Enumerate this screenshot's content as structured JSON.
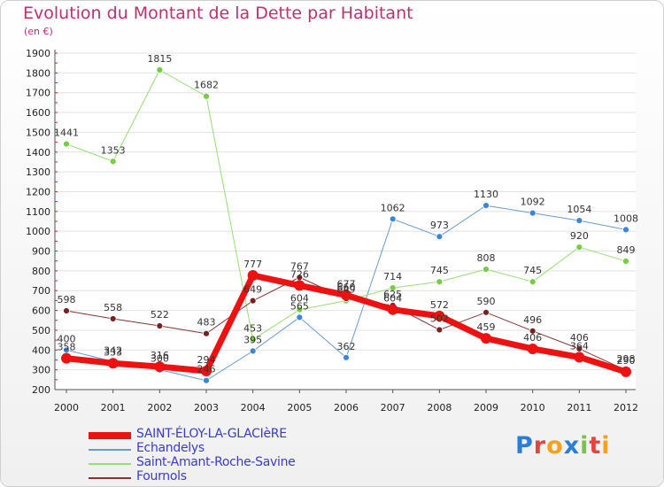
{
  "title": "Evolution du Montant de la Dette par Habitant",
  "subtitle": "(en €)",
  "logo": {
    "letters": [
      "P",
      "r",
      "o",
      "x",
      "i",
      "t",
      "i"
    ],
    "colors": [
      "#2a7ed6",
      "#e0463b",
      "#f3a21a",
      "#2a7ed6",
      "#7cc242",
      "#e0463b",
      "#f3a21a"
    ]
  },
  "chart_data": {
    "type": "line",
    "x": [
      "2000",
      "2001",
      "2002",
      "2003",
      "2004",
      "2005",
      "2006",
      "2007",
      "2008",
      "2009",
      "2010",
      "2011",
      "2012"
    ],
    "yticks": [
      200,
      300,
      400,
      500,
      600,
      700,
      800,
      900,
      1000,
      1100,
      1200,
      1300,
      1400,
      1500,
      1600,
      1700,
      1800,
      1900
    ],
    "ylim": [
      200,
      1900
    ],
    "grid": "horizontal",
    "legend_position": "bottom-left",
    "series": [
      {
        "name": "SAINT-ÉLOY-LA-GLACIèRE",
        "color": "#ee1111",
        "width": 7,
        "marker": 6,
        "values": [
          358,
          333,
          316,
          294,
          777,
          726,
          677,
          604,
          572,
          459,
          406,
          364,
          290
        ],
        "labels": [
          "358",
          "333",
          "316",
          "294",
          "777",
          "726",
          "677",
          "604",
          "572",
          "459",
          "406",
          "364",
          "290"
        ]
      },
      {
        "name": "Echandelys",
        "color": "#6a9ad0",
        "width": 1,
        "marker": 3.5,
        "markerFill": "#3d86d6",
        "values": [
          400,
          342,
          300,
          246,
          395,
          565,
          362,
          1062,
          973,
          1130,
          1092,
          1054,
          1008
        ],
        "labels": [
          "400",
          "342",
          "300",
          "246",
          "395",
          "565",
          "362",
          "1062",
          "973",
          "1130",
          "1092",
          "1054",
          "1008"
        ]
      },
      {
        "name": "Saint-Amant-Roche-Savine",
        "color": "#99dd77",
        "width": 1,
        "marker": 3.5,
        "markerFill": "#77cc44",
        "values": [
          1441,
          1353,
          1815,
          1682,
          453,
          604,
          649,
          714,
          745,
          808,
          745,
          920,
          849
        ],
        "labels": [
          "1441",
          "1353",
          "1815",
          "1682",
          "453",
          "604",
          "649",
          "714",
          "745",
          "808",
          "745",
          "920",
          "849"
        ]
      },
      {
        "name": "Fournols",
        "color": "#883333",
        "width": 1,
        "marker": 3.5,
        "markerFill": "#772222",
        "values": [
          598,
          558,
          522,
          483,
          649,
          767,
          660,
          625,
          502,
          590,
          496,
          406,
          298
        ],
        "labels": [
          "598",
          "558",
          "522",
          "483",
          "649",
          "767",
          "660",
          "625",
          "502",
          "590",
          "496",
          "406",
          "298"
        ]
      }
    ]
  }
}
